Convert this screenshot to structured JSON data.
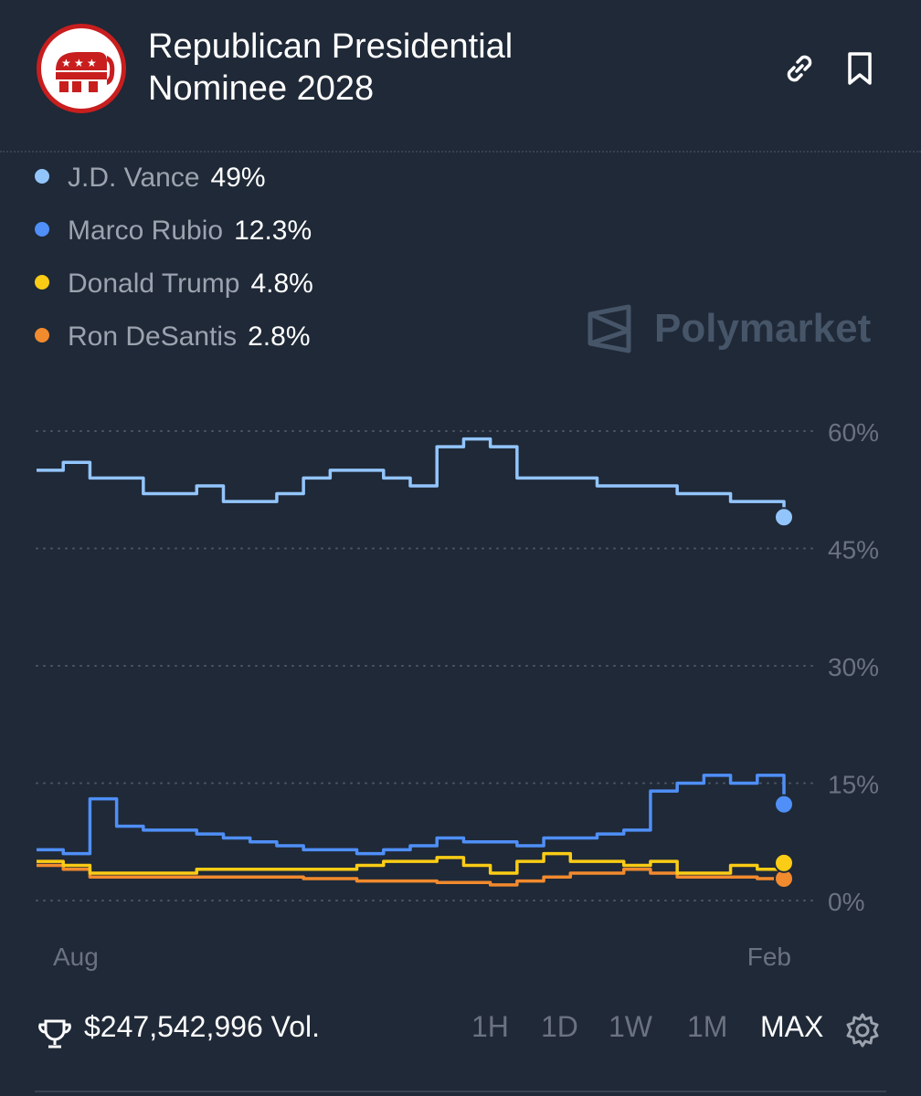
{
  "header": {
    "title": "Republican Presidential\nNominee 2028",
    "logo_icon": "gop-elephant-icon",
    "actions": [
      "link-icon",
      "bookmark-icon"
    ]
  },
  "legend": [
    {
      "name": "J.D. Vance",
      "value": "49%",
      "color": "#93c5fd"
    },
    {
      "name": "Marco Rubio",
      "value": "12.3%",
      "color": "#4f8ff7"
    },
    {
      "name": "Donald Trump",
      "value": "4.8%",
      "color": "#facc15"
    },
    {
      "name": "Ron DeSantis",
      "value": "2.8%",
      "color": "#f28a2e"
    }
  ],
  "watermark": "Polymarket",
  "chart_data": {
    "type": "line",
    "x_tick_labels": [
      "Aug",
      "Feb"
    ],
    "y_tick_labels": [
      "60%",
      "45%",
      "30%",
      "15%",
      "0%"
    ],
    "ylim": [
      0,
      60
    ],
    "grid": true,
    "series": [
      {
        "name": "J.D. Vance",
        "color": "#93c5fd",
        "values": [
          55,
          56,
          54,
          54,
          52,
          52,
          53,
          51,
          51,
          52,
          54,
          55,
          55,
          54,
          53,
          58,
          59,
          58,
          54,
          54,
          54,
          53,
          53,
          53,
          52,
          52,
          51,
          51,
          49
        ]
      },
      {
        "name": "Marco Rubio",
        "color": "#4f8ff7",
        "values": [
          6.5,
          6,
          13,
          9.5,
          9,
          9,
          8.5,
          8,
          7.5,
          7,
          6.5,
          6.5,
          6,
          6.5,
          7,
          8,
          7.5,
          7.5,
          7,
          8,
          8,
          8.5,
          9,
          14,
          15,
          16,
          15,
          16,
          12.3
        ]
      },
      {
        "name": "Donald Trump",
        "color": "#facc15",
        "values": [
          5,
          4.5,
          3.5,
          3.5,
          3.5,
          3.5,
          4,
          4,
          4,
          4,
          4,
          4,
          4.5,
          5,
          5,
          5.5,
          4.5,
          3.5,
          5,
          6,
          5,
          5,
          4.5,
          5,
          3.5,
          3.5,
          4.5,
          4,
          4.8
        ]
      },
      {
        "name": "Ron DeSantis",
        "color": "#f28a2e",
        "values": [
          4.5,
          4,
          3,
          3,
          3,
          3,
          3,
          3,
          3,
          3,
          2.8,
          2.8,
          2.5,
          2.5,
          2.5,
          2.3,
          2.3,
          2,
          2.5,
          3,
          3.5,
          3.5,
          4,
          3.5,
          3,
          3,
          3,
          2.8,
          2.8
        ]
      }
    ]
  },
  "footer": {
    "volume": "$247,542,996 Vol.",
    "timeframes": [
      "1H",
      "1D",
      "1W",
      "1M",
      "MAX"
    ],
    "active_timeframe": "MAX"
  }
}
